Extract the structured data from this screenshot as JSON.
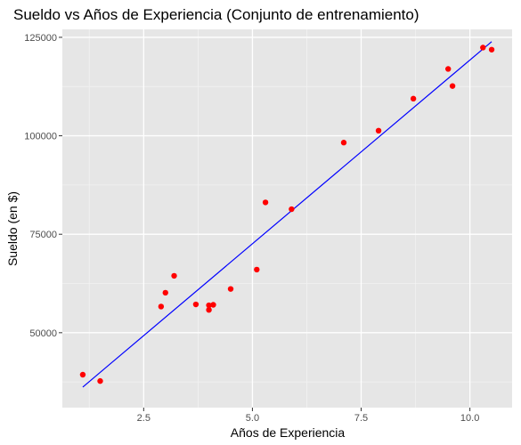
{
  "chart_data": {
    "type": "scatter",
    "title": "Sueldo vs Años de Experiencia (Conjunto de entrenamiento)",
    "xlabel": "Años de Experiencia",
    "ylabel": "Sueldo (en $)",
    "xlim": [
      0.63,
      10.97
    ],
    "ylim": [
      30980,
      127020
    ],
    "x_ticks": [
      2.5,
      5.0,
      7.5,
      10.0
    ],
    "x_tick_labels": [
      "2.5",
      "5.0",
      "7.5",
      "10.0"
    ],
    "y_ticks": [
      50000,
      75000,
      100000,
      125000
    ],
    "y_tick_labels": [
      "50000",
      "75000",
      "100000",
      "125000"
    ],
    "grid": true,
    "background_color": "#e6e6e6",
    "point_color": "#ff0000",
    "line_color": "#0000ff",
    "points": [
      {
        "x": 1.1,
        "y": 39343
      },
      {
        "x": 1.5,
        "y": 37731
      },
      {
        "x": 2.9,
        "y": 56642
      },
      {
        "x": 3.0,
        "y": 60150
      },
      {
        "x": 3.2,
        "y": 64445
      },
      {
        "x": 3.7,
        "y": 57189
      },
      {
        "x": 4.0,
        "y": 55794
      },
      {
        "x": 4.0,
        "y": 56957
      },
      {
        "x": 4.1,
        "y": 57081
      },
      {
        "x": 4.5,
        "y": 61111
      },
      {
        "x": 5.1,
        "y": 66029
      },
      {
        "x": 5.3,
        "y": 83088
      },
      {
        "x": 5.9,
        "y": 81363
      },
      {
        "x": 7.1,
        "y": 98273
      },
      {
        "x": 7.9,
        "y": 101302
      },
      {
        "x": 8.7,
        "y": 109431
      },
      {
        "x": 9.5,
        "y": 116969
      },
      {
        "x": 9.6,
        "y": 112635
      },
      {
        "x": 10.3,
        "y": 122391
      },
      {
        "x": 10.5,
        "y": 121872
      }
    ],
    "fit_line": {
      "x": [
        1.1,
        10.5
      ],
      "y": [
        36200,
        123900
      ]
    }
  }
}
